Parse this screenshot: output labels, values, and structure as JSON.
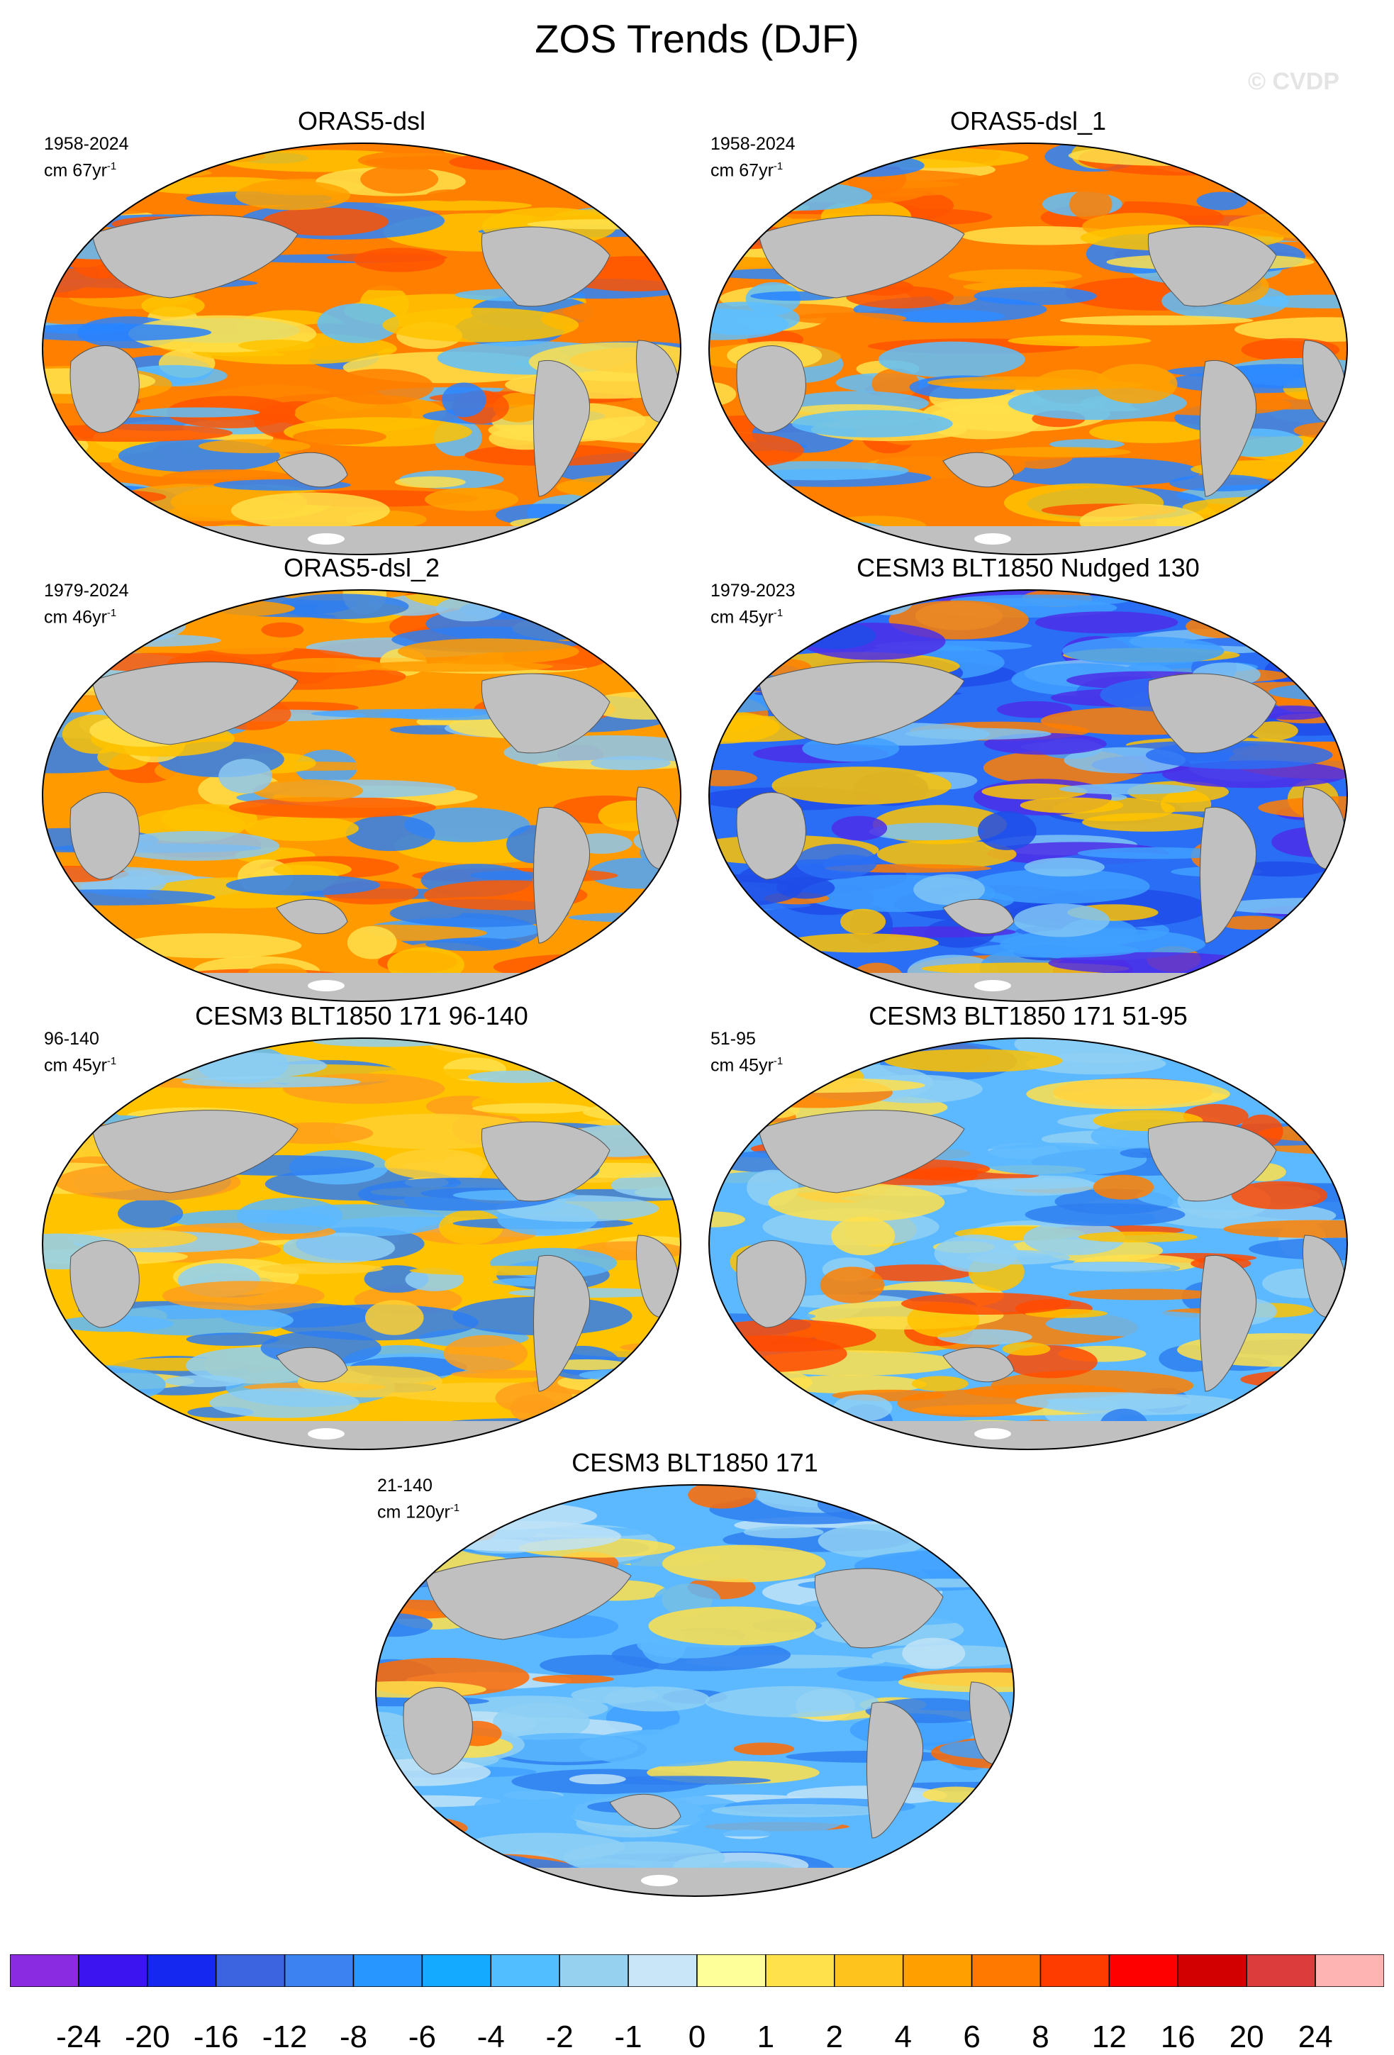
{
  "title": "ZOS Trends (DJF)",
  "watermark": "© CVDP",
  "panels": [
    {
      "title": "ORAS5-dsl",
      "period": "1958-2024",
      "unit_prefix": "cm 67yr",
      "palette": [
        "#ff7f00",
        "#ffa300",
        "#ffc300",
        "#ff5300",
        "#2882ff",
        "#5dc0ff",
        "#ffe14b"
      ]
    },
    {
      "title": "ORAS5-dsl_1",
      "period": "1958-2024",
      "unit_prefix": "cm 67yr",
      "palette": [
        "#ff7f00",
        "#ffa300",
        "#ffc300",
        "#ff5300",
        "#2882ff",
        "#5dc0ff",
        "#ffe14b"
      ]
    },
    {
      "title": "ORAS5-dsl_2",
      "period": "1979-2024",
      "unit_prefix": "cm 46yr",
      "palette": [
        "#ff9b00",
        "#ffc300",
        "#2e7ef0",
        "#4aa6ff",
        "#ff5a00",
        "#ffe14b",
        "#8cc8f0"
      ]
    },
    {
      "title": "CESM3 BLT1850 Nudged 130",
      "period": "1979-2023",
      "unit_prefix": "cm 45yr",
      "palette": [
        "#2a6ef5",
        "#1f4ce8",
        "#3fa0ff",
        "#4c2ee8",
        "#ffc300",
        "#ff7f00",
        "#7fc4f5"
      ]
    },
    {
      "title": "CESM3 BLT1850 171 96-140",
      "period": "96-140",
      "unit_prefix": "cm 45yr",
      "palette": [
        "#ffc300",
        "#5cb8ff",
        "#ffe14b",
        "#ff9f1a",
        "#8fd0f5",
        "#2e7ef0",
        "#ffd030"
      ]
    },
    {
      "title": "CESM3 BLT1850 171 51-95",
      "period": "51-95",
      "unit_prefix": "cm 45yr",
      "palette": [
        "#5cb8ff",
        "#ffc300",
        "#ff7f00",
        "#8fd0f5",
        "#ffe14b",
        "#2e7ef0",
        "#ff4a00"
      ]
    },
    {
      "title": "CESM3 BLT1850 171",
      "period": "21-140",
      "unit_prefix": "cm 120yr",
      "palette": [
        "#5cb8ff",
        "#8fd0f5",
        "#3fa0ff",
        "#ffe14b",
        "#ff6a00",
        "#2e7ef0",
        "#bfe3f7"
      ]
    }
  ],
  "unit_exponent": "-1",
  "colors": {
    "land": "#c0c0c0",
    "border": "#000000"
  },
  "colorbar": {
    "labels": [
      "-24",
      "-20",
      "-16",
      "-12",
      "-8",
      "-6",
      "-4",
      "-2",
      "-1",
      "0",
      "1",
      "2",
      "4",
      "6",
      "8",
      "12",
      "16",
      "20",
      "24"
    ],
    "colors": [
      "#8a2be2",
      "#3c14f0",
      "#1428f0",
      "#3c64e0",
      "#3c82f0",
      "#2896ff",
      "#14aaff",
      "#50beff",
      "#96d2f0",
      "#c8e6f8",
      "#ffff9a",
      "#ffe14b",
      "#ffc31e",
      "#ffa000",
      "#ff7800",
      "#ff3c00",
      "#ff0000",
      "#d20000",
      "#dc3c3c",
      "#ffb4b4"
    ]
  }
}
